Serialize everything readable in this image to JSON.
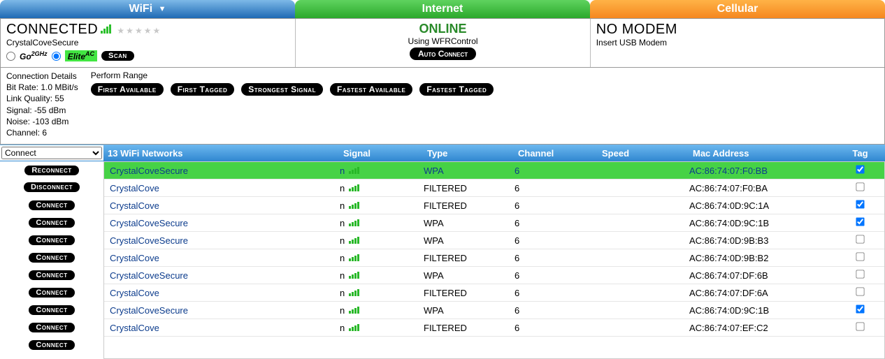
{
  "tabs": {
    "wifi": "WiFi",
    "internet": "Internet",
    "cellular": "Cellular"
  },
  "wifi_panel": {
    "status": "CONNECTED",
    "ssid": "CrystalCoveSecure",
    "radio_go_label": "Go",
    "radio_go_sup": "2GHz",
    "radio_elite_label": "Elite",
    "radio_elite_sup": "AC",
    "scan_btn": "Scan"
  },
  "internet_panel": {
    "status": "ONLINE",
    "status_color": "#2a8a2a",
    "using": "Using WFRControl",
    "auto_connect_btn": "Auto Connect"
  },
  "cellular_panel": {
    "status": "NO MODEM",
    "hint": "Insert USB Modem"
  },
  "details": {
    "title": "Connection Details",
    "bit_rate": "Bit Rate: 1.0 MBit/s",
    "link_quality": "Link Quality: 55",
    "signal": "Signal: -55 dBm",
    "noise": "Noise: -103 dBm",
    "channel": "Channel: 6"
  },
  "range": {
    "title": "Perform Range",
    "first_available": "First Available",
    "first_tagged": "First Tagged",
    "strongest_signal": "Strongest Signal",
    "fastest_available": "Fastest Available",
    "fastest_tagged": "Fastest Tagged"
  },
  "action_select": "Connect",
  "col": {
    "name": "13 WiFi Networks",
    "signal": "Signal",
    "type": "Type",
    "channel": "Channel",
    "speed": "Speed",
    "mac": "Mac Address",
    "tag": "Tag"
  },
  "btns": {
    "reconnect": "Reconnect",
    "disconnect": "Disconnect",
    "connect": "Connect"
  },
  "rows": [
    {
      "name": "CrystalCoveSecure",
      "sig": "n",
      "type": "WPA",
      "ch": "6",
      "mac": "AC:86:74:07:F0:BB",
      "tag": true,
      "sel": true
    },
    {
      "name": "CrystalCove",
      "sig": "n",
      "type": "FILTERED",
      "ch": "6",
      "mac": "AC:86:74:07:F0:BA",
      "tag": false
    },
    {
      "name": "CrystalCove",
      "sig": "n",
      "type": "FILTERED",
      "ch": "6",
      "mac": "AC:86:74:0D:9C:1A",
      "tag": true
    },
    {
      "name": "CrystalCoveSecure",
      "sig": "n",
      "type": "WPA",
      "ch": "6",
      "mac": "AC:86:74:0D:9C:1B",
      "tag": true
    },
    {
      "name": "CrystalCoveSecure",
      "sig": "n",
      "type": "WPA",
      "ch": "6",
      "mac": "AC:86:74:0D:9B:B3",
      "tag": false
    },
    {
      "name": "CrystalCove",
      "sig": "n",
      "type": "FILTERED",
      "ch": "6",
      "mac": "AC:86:74:0D:9B:B2",
      "tag": false
    },
    {
      "name": "CrystalCoveSecure",
      "sig": "n",
      "type": "WPA",
      "ch": "6",
      "mac": "AC:86:74:07:DF:6B",
      "tag": false
    },
    {
      "name": "CrystalCove",
      "sig": "n",
      "type": "FILTERED",
      "ch": "6",
      "mac": "AC:86:74:07:DF:6A",
      "tag": false
    },
    {
      "name": "CrystalCoveSecure",
      "sig": "n",
      "type": "WPA",
      "ch": "6",
      "mac": "AC:86:74:0D:9C:1B",
      "tag": true
    },
    {
      "name": "CrystalCove",
      "sig": "n",
      "type": "FILTERED",
      "ch": "6",
      "mac": "AC:86:74:07:EF:C2",
      "tag": false
    }
  ],
  "colors": {
    "tab_wifi": "#2b79c7",
    "tab_internet": "#34b234",
    "tab_cellular": "#f59833",
    "row_sel": "#46d246",
    "link": "#0b3b8c",
    "signal_bar": "#28b828"
  }
}
